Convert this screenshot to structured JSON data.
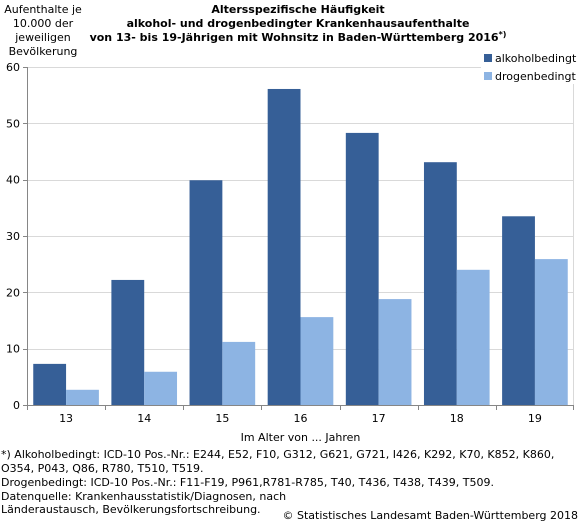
{
  "chart_data": {
    "type": "bar",
    "title": [
      "Altersspezifische Häufigkeit",
      "alkohol- und drogenbedingter Krankenhausaufenthalte",
      "von 13- bis 19-Jährigen mit Wohnsitz in Baden-Württemberg 2016"
    ],
    "title_footnote_marker": "*)",
    "ylabel": [
      "Aufenthalte je",
      "10.000 der",
      "jeweiligen",
      "Bevölkerung"
    ],
    "xlabel": "Im Alter von ... Jahren",
    "categories": [
      "13",
      "14",
      "15",
      "16",
      "17",
      "18",
      "19"
    ],
    "series": [
      {
        "name": "alkoholbedingt",
        "color": "#365f97",
        "values": [
          7.3,
          22.2,
          39.9,
          56.1,
          48.3,
          43.1,
          33.5
        ]
      },
      {
        "name": "drogenbedingt",
        "color": "#8db4e3",
        "values": [
          2.7,
          5.9,
          11.2,
          15.6,
          18.8,
          24.0,
          25.9
        ]
      }
    ],
    "ylim": [
      0,
      60
    ],
    "yticks": [
      0,
      10,
      20,
      30,
      40,
      50,
      60
    ],
    "grid": true,
    "legend_position": "top-right"
  },
  "footnotes": [
    "*) Alkoholbedingt: ICD-10 Pos.-Nr.: E244, E52, F10, G312, G621, G721, I426, K292, K70, K852, K860,",
    "O354, P043, Q86, R780, T510, T519.",
    "Drogenbedingt: ICD-10 Pos.-Nr.: F11-F19, P961,R781-R785, T40, T436, T438, T439, T509.",
    "Datenquelle: Krankenhausstatistik/Diagnosen, nach",
    "Länderaustausch, Bevölkerungsfortschreibung."
  ],
  "copyright": "© Statistisches Landesamt Baden-Württemberg 2018"
}
